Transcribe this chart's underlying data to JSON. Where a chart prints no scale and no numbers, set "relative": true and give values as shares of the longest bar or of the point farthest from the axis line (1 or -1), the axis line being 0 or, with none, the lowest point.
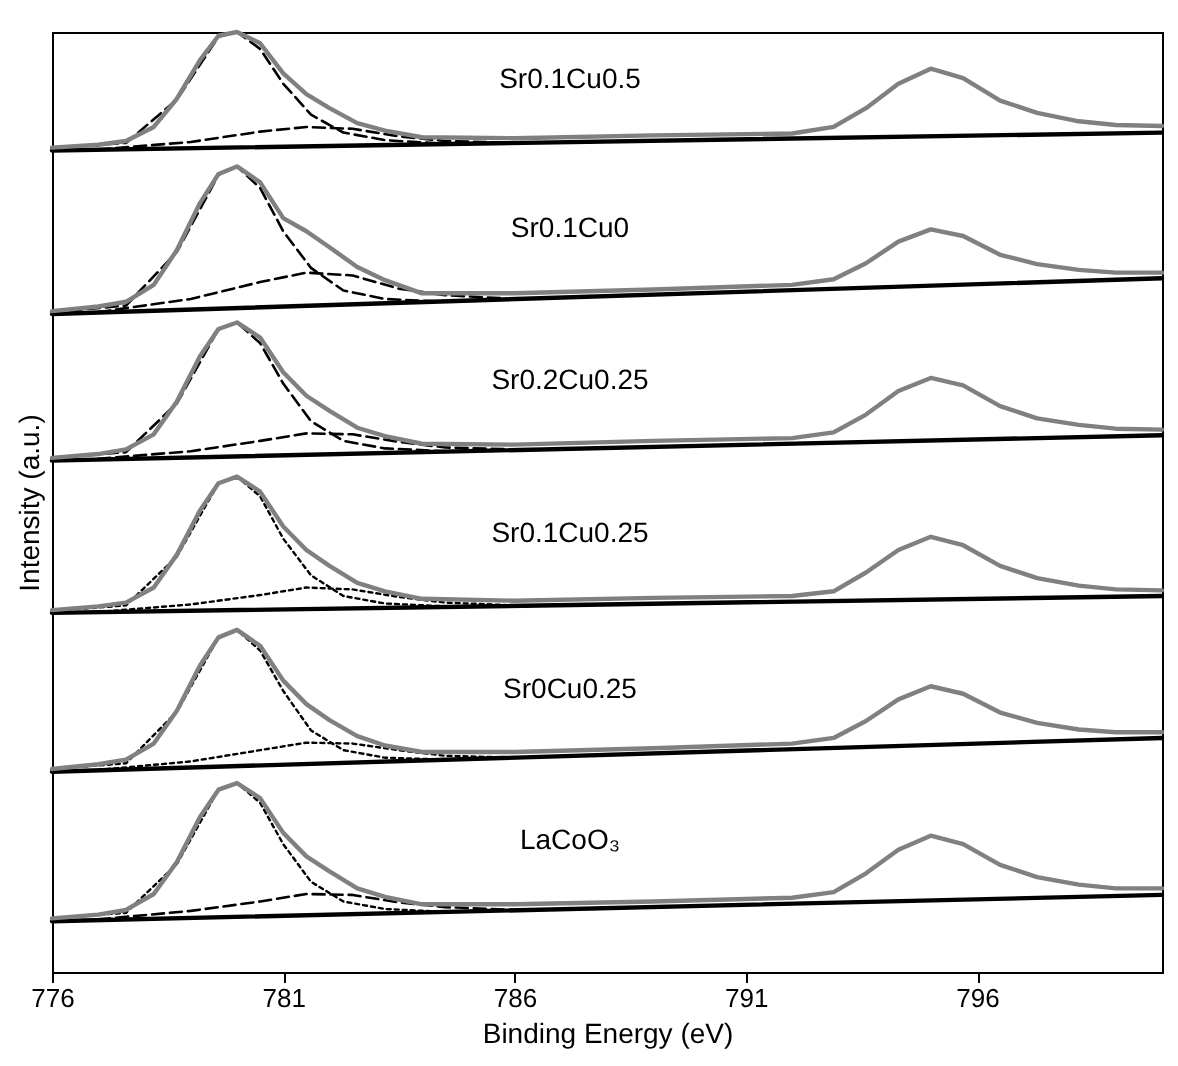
{
  "chart_data": {
    "type": "line",
    "relative": true,
    "xlabel": "Binding Energy (eV)",
    "ylabel": "Intensity (a.u.)",
    "xlim": [
      776,
      800
    ],
    "xticks": [
      776,
      781,
      786,
      791,
      796
    ],
    "grid": false,
    "x": [
      776,
      777,
      777.6,
      778.2,
      778.7,
      779.2,
      779.6,
      780,
      780.5,
      781,
      781.5,
      782,
      782.6,
      783.2,
      784,
      786,
      789,
      792,
      792.9,
      793.6,
      794.3,
      795,
      795.7,
      796.5,
      797.3,
      798.2,
      799,
      800
    ],
    "series": [
      {
        "color": "#000000",
        "line_style": "solid",
        "x": [
          776,
          800
        ],
        "values": [
          0.874,
          0.893
        ]
      },
      {
        "color": "#000000",
        "line_style": "dashed",
        "x": [
          776,
          777.6,
          778.7,
          779.6,
          780,
          780.5,
          781,
          781.6,
          782.3,
          783.2,
          784.5
        ],
        "values": [
          0.877,
          0.882,
          0.928,
          0.995,
          1.0,
          0.982,
          0.945,
          0.912,
          0.893,
          0.885,
          0.881
        ]
      },
      {
        "color": "#000000",
        "line_style": "dashed",
        "x": [
          777,
          779,
          780.5,
          781.5,
          782.5,
          783.5,
          784.5,
          786
        ],
        "values": [
          0.875,
          0.883,
          0.894,
          0.899,
          0.897,
          0.889,
          0.884,
          0.882
        ]
      },
      {
        "name": "Sr0.1Cu0.5",
        "color": "#808080",
        "line_style": "solid",
        "values": [
          0.877,
          0.88,
          0.884,
          0.899,
          0.929,
          0.97,
          0.996,
          1.0,
          0.988,
          0.956,
          0.934,
          0.919,
          0.903,
          0.895,
          0.888,
          0.887,
          0.89,
          0.892,
          0.899,
          0.919,
          0.945,
          0.961,
          0.951,
          0.927,
          0.914,
          0.905,
          0.901,
          0.9
        ]
      },
      {
        "color": "#000000",
        "line_style": "solid",
        "x": [
          776,
          800
        ],
        "values": [
          0.7,
          0.738
        ]
      },
      {
        "color": "#000000",
        "line_style": "dashed",
        "x": [
          776,
          777.6,
          778.7,
          779.6,
          780,
          780.5,
          781,
          781.6,
          782.3,
          783.2,
          784.5
        ],
        "values": [
          0.702,
          0.709,
          0.766,
          0.848,
          0.857,
          0.834,
          0.788,
          0.749,
          0.725,
          0.716,
          0.713
        ]
      },
      {
        "color": "#000000",
        "line_style": "dashed",
        "x": [
          777,
          779,
          780.5,
          781.5,
          782.5,
          783.5,
          784.5,
          786
        ],
        "values": [
          0.702,
          0.716,
          0.734,
          0.744,
          0.741,
          0.727,
          0.72,
          0.716
        ]
      },
      {
        "name": "Sr0.1Cu0",
        "color": "#808080",
        "line_style": "solid",
        "values": [
          0.703,
          0.708,
          0.713,
          0.731,
          0.768,
          0.818,
          0.849,
          0.857,
          0.84,
          0.802,
          0.788,
          0.771,
          0.75,
          0.736,
          0.722,
          0.722,
          0.726,
          0.731,
          0.737,
          0.754,
          0.777,
          0.79,
          0.783,
          0.763,
          0.753,
          0.747,
          0.744,
          0.744
        ]
      },
      {
        "color": "#000000",
        "line_style": "solid",
        "x": [
          776,
          800
        ],
        "values": [
          0.544,
          0.571
        ]
      },
      {
        "color": "#000000",
        "line_style": "dashed",
        "x": [
          776,
          777.6,
          778.7,
          779.6,
          780,
          780.5,
          781,
          781.6,
          782.3,
          783.2,
          784.5
        ],
        "values": [
          0.547,
          0.553,
          0.605,
          0.684,
          0.691,
          0.669,
          0.626,
          0.586,
          0.565,
          0.557,
          0.554
        ]
      },
      {
        "color": "#000000",
        "line_style": "dashed",
        "x": [
          777,
          779,
          780.5,
          781.5,
          782.5,
          783.5,
          784.5,
          786
        ],
        "values": [
          0.546,
          0.554,
          0.565,
          0.573,
          0.572,
          0.564,
          0.558,
          0.556
        ]
      },
      {
        "name": "Sr0.2Cu0.25",
        "color": "#808080",
        "line_style": "solid",
        "values": [
          0.547,
          0.551,
          0.556,
          0.572,
          0.607,
          0.655,
          0.684,
          0.691,
          0.675,
          0.638,
          0.613,
          0.597,
          0.579,
          0.57,
          0.562,
          0.561,
          0.565,
          0.568,
          0.574,
          0.593,
          0.618,
          0.632,
          0.624,
          0.602,
          0.589,
          0.582,
          0.578,
          0.577
        ]
      },
      {
        "color": "#000000",
        "line_style": "solid",
        "x": [
          776,
          800
        ],
        "values": [
          0.382,
          0.4
        ]
      },
      {
        "color": "#000000",
        "line_style": "dotted",
        "x": [
          776,
          777.6,
          778.7,
          779.6,
          780,
          780.5,
          781,
          781.6,
          782.3,
          783.2,
          784.5
        ],
        "values": [
          0.384,
          0.39,
          0.442,
          0.52,
          0.527,
          0.506,
          0.461,
          0.422,
          0.4,
          0.392,
          0.389
        ]
      },
      {
        "color": "#000000",
        "line_style": "dotted",
        "x": [
          777,
          779,
          780.5,
          781.5,
          782.5,
          783.5,
          784.5,
          786
        ],
        "values": [
          0.383,
          0.391,
          0.401,
          0.409,
          0.407,
          0.399,
          0.393,
          0.39
        ]
      },
      {
        "name": "Sr0.1Cu0.25",
        "color": "#808080",
        "line_style": "solid",
        "values": [
          0.385,
          0.389,
          0.393,
          0.409,
          0.444,
          0.491,
          0.52,
          0.527,
          0.511,
          0.474,
          0.449,
          0.432,
          0.414,
          0.405,
          0.397,
          0.395,
          0.398,
          0.4,
          0.405,
          0.425,
          0.449,
          0.463,
          0.454,
          0.432,
          0.419,
          0.411,
          0.407,
          0.406
        ]
      },
      {
        "color": "#000000",
        "line_style": "solid",
        "x": [
          776,
          800
        ],
        "values": [
          0.213,
          0.249
        ]
      },
      {
        "color": "#000000",
        "line_style": "dotted",
        "x": [
          776,
          777.6,
          778.7,
          779.6,
          780,
          780.5,
          781,
          781.6,
          782.3,
          783.2,
          784.5
        ],
        "values": [
          0.216,
          0.222,
          0.277,
          0.356,
          0.364,
          0.342,
          0.299,
          0.257,
          0.236,
          0.228,
          0.226
        ]
      },
      {
        "color": "#000000",
        "line_style": "dotted",
        "x": [
          777,
          779,
          780.5,
          781.5,
          782.5,
          783.5,
          784.5,
          786
        ],
        "values": [
          0.215,
          0.224,
          0.236,
          0.244,
          0.243,
          0.236,
          0.23,
          0.228
        ]
      },
      {
        "name": "Sr0Cu0.25",
        "color": "#808080",
        "line_style": "solid",
        "values": [
          0.216,
          0.221,
          0.226,
          0.243,
          0.278,
          0.326,
          0.356,
          0.364,
          0.347,
          0.31,
          0.285,
          0.268,
          0.251,
          0.241,
          0.234,
          0.234,
          0.238,
          0.243,
          0.249,
          0.267,
          0.29,
          0.304,
          0.296,
          0.276,
          0.265,
          0.258,
          0.255,
          0.255
        ]
      },
      {
        "color": "#000000",
        "line_style": "solid",
        "x": [
          776,
          800
        ],
        "values": [
          0.054,
          0.082
        ]
      },
      {
        "color": "#000000",
        "line_style": "dotted",
        "x": [
          776,
          777.6,
          778.7,
          779.6,
          780,
          780.5,
          781,
          781.6,
          782.3,
          783.2,
          784.5
        ],
        "values": [
          0.057,
          0.063,
          0.115,
          0.194,
          0.201,
          0.18,
          0.136,
          0.096,
          0.075,
          0.067,
          0.064
        ]
      },
      {
        "color": "#000000",
        "line_style": "dashed",
        "x": [
          777,
          779,
          780.5,
          781.5,
          782.5,
          783.5,
          784.5,
          786
        ],
        "values": [
          0.056,
          0.065,
          0.075,
          0.083,
          0.082,
          0.074,
          0.069,
          0.066
        ]
      },
      {
        "name": "LaCoO₃",
        "color": "#808080",
        "line_style": "solid",
        "values": [
          0.057,
          0.061,
          0.066,
          0.083,
          0.117,
          0.165,
          0.194,
          0.201,
          0.185,
          0.148,
          0.123,
          0.107,
          0.089,
          0.08,
          0.072,
          0.072,
          0.075,
          0.079,
          0.085,
          0.105,
          0.13,
          0.145,
          0.136,
          0.114,
          0.101,
          0.093,
          0.089,
          0.089
        ]
      }
    ]
  }
}
